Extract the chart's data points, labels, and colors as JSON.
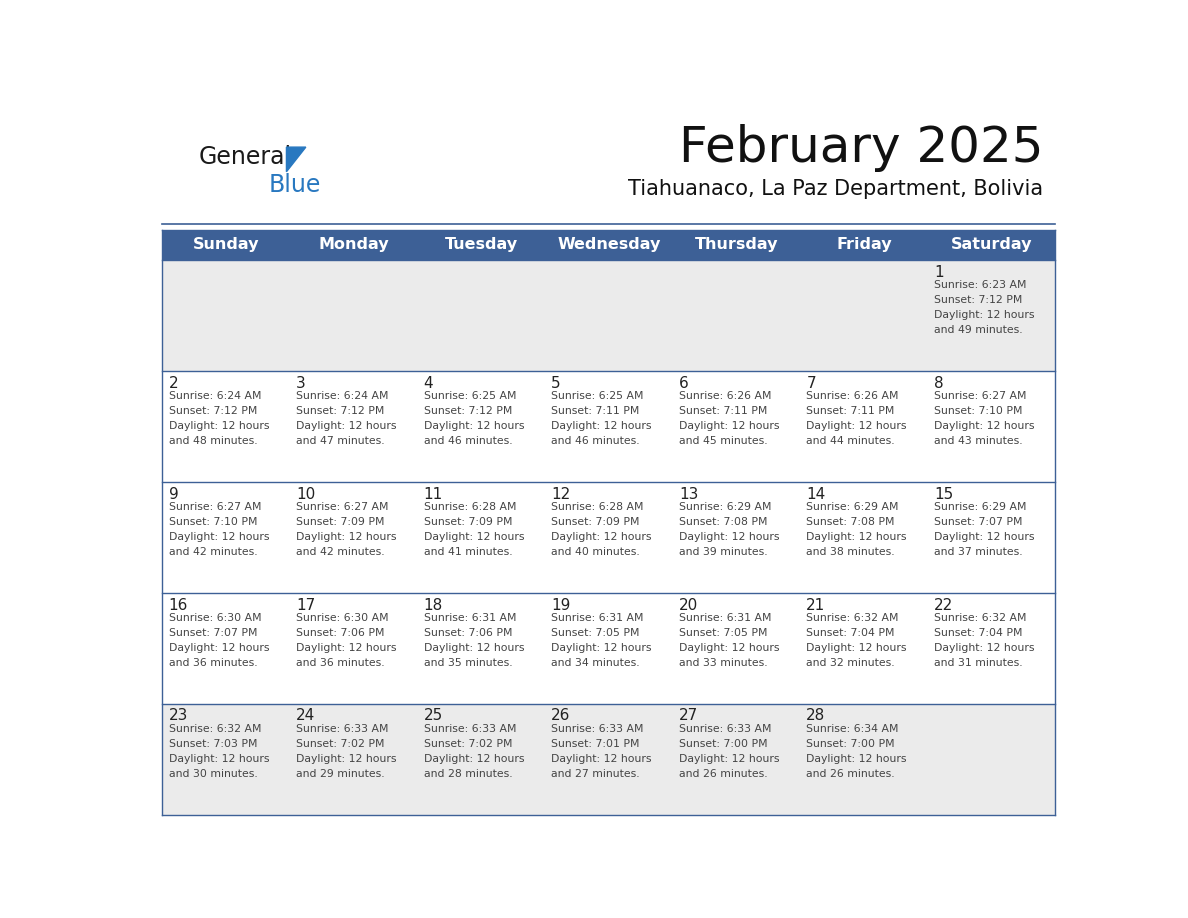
{
  "title": "February 2025",
  "subtitle": "Tiahuanaco, La Paz Department, Bolivia",
  "days_of_week": [
    "Sunday",
    "Monday",
    "Tuesday",
    "Wednesday",
    "Thursday",
    "Friday",
    "Saturday"
  ],
  "header_bg": "#3D6096",
  "header_text": "#FFFFFF",
  "cell_bg_white": "#FFFFFF",
  "cell_bg_light": "#F0F0F0",
  "row_separator_color": "#3D6096",
  "outer_border_color": "#3D6096",
  "text_color": "#444444",
  "day_num_color": "#222222",
  "logo_general_color": "#1a1a1a",
  "logo_blue_color": "#2878C0",
  "calendar": [
    [
      {
        "day": null,
        "sunrise": null,
        "sunset": null,
        "daylight": null
      },
      {
        "day": null,
        "sunrise": null,
        "sunset": null,
        "daylight": null
      },
      {
        "day": null,
        "sunrise": null,
        "sunset": null,
        "daylight": null
      },
      {
        "day": null,
        "sunrise": null,
        "sunset": null,
        "daylight": null
      },
      {
        "day": null,
        "sunrise": null,
        "sunset": null,
        "daylight": null
      },
      {
        "day": null,
        "sunrise": null,
        "sunset": null,
        "daylight": null
      },
      {
        "day": 1,
        "sunrise": "6:23 AM",
        "sunset": "7:12 PM",
        "daylight": "12 hours\nand 49 minutes."
      }
    ],
    [
      {
        "day": 2,
        "sunrise": "6:24 AM",
        "sunset": "7:12 PM",
        "daylight": "12 hours\nand 48 minutes."
      },
      {
        "day": 3,
        "sunrise": "6:24 AM",
        "sunset": "7:12 PM",
        "daylight": "12 hours\nand 47 minutes."
      },
      {
        "day": 4,
        "sunrise": "6:25 AM",
        "sunset": "7:12 PM",
        "daylight": "12 hours\nand 46 minutes."
      },
      {
        "day": 5,
        "sunrise": "6:25 AM",
        "sunset": "7:11 PM",
        "daylight": "12 hours\nand 46 minutes."
      },
      {
        "day": 6,
        "sunrise": "6:26 AM",
        "sunset": "7:11 PM",
        "daylight": "12 hours\nand 45 minutes."
      },
      {
        "day": 7,
        "sunrise": "6:26 AM",
        "sunset": "7:11 PM",
        "daylight": "12 hours\nand 44 minutes."
      },
      {
        "day": 8,
        "sunrise": "6:27 AM",
        "sunset": "7:10 PM",
        "daylight": "12 hours\nand 43 minutes."
      }
    ],
    [
      {
        "day": 9,
        "sunrise": "6:27 AM",
        "sunset": "7:10 PM",
        "daylight": "12 hours\nand 42 minutes."
      },
      {
        "day": 10,
        "sunrise": "6:27 AM",
        "sunset": "7:09 PM",
        "daylight": "12 hours\nand 42 minutes."
      },
      {
        "day": 11,
        "sunrise": "6:28 AM",
        "sunset": "7:09 PM",
        "daylight": "12 hours\nand 41 minutes."
      },
      {
        "day": 12,
        "sunrise": "6:28 AM",
        "sunset": "7:09 PM",
        "daylight": "12 hours\nand 40 minutes."
      },
      {
        "day": 13,
        "sunrise": "6:29 AM",
        "sunset": "7:08 PM",
        "daylight": "12 hours\nand 39 minutes."
      },
      {
        "day": 14,
        "sunrise": "6:29 AM",
        "sunset": "7:08 PM",
        "daylight": "12 hours\nand 38 minutes."
      },
      {
        "day": 15,
        "sunrise": "6:29 AM",
        "sunset": "7:07 PM",
        "daylight": "12 hours\nand 37 minutes."
      }
    ],
    [
      {
        "day": 16,
        "sunrise": "6:30 AM",
        "sunset": "7:07 PM",
        "daylight": "12 hours\nand 36 minutes."
      },
      {
        "day": 17,
        "sunrise": "6:30 AM",
        "sunset": "7:06 PM",
        "daylight": "12 hours\nand 36 minutes."
      },
      {
        "day": 18,
        "sunrise": "6:31 AM",
        "sunset": "7:06 PM",
        "daylight": "12 hours\nand 35 minutes."
      },
      {
        "day": 19,
        "sunrise": "6:31 AM",
        "sunset": "7:05 PM",
        "daylight": "12 hours\nand 34 minutes."
      },
      {
        "day": 20,
        "sunrise": "6:31 AM",
        "sunset": "7:05 PM",
        "daylight": "12 hours\nand 33 minutes."
      },
      {
        "day": 21,
        "sunrise": "6:32 AM",
        "sunset": "7:04 PM",
        "daylight": "12 hours\nand 32 minutes."
      },
      {
        "day": 22,
        "sunrise": "6:32 AM",
        "sunset": "7:04 PM",
        "daylight": "12 hours\nand 31 minutes."
      }
    ],
    [
      {
        "day": 23,
        "sunrise": "6:32 AM",
        "sunset": "7:03 PM",
        "daylight": "12 hours\nand 30 minutes."
      },
      {
        "day": 24,
        "sunrise": "6:33 AM",
        "sunset": "7:02 PM",
        "daylight": "12 hours\nand 29 minutes."
      },
      {
        "day": 25,
        "sunrise": "6:33 AM",
        "sunset": "7:02 PM",
        "daylight": "12 hours\nand 28 minutes."
      },
      {
        "day": 26,
        "sunrise": "6:33 AM",
        "sunset": "7:01 PM",
        "daylight": "12 hours\nand 27 minutes."
      },
      {
        "day": 27,
        "sunrise": "6:33 AM",
        "sunset": "7:00 PM",
        "daylight": "12 hours\nand 26 minutes."
      },
      {
        "day": 28,
        "sunrise": "6:34 AM",
        "sunset": "7:00 PM",
        "daylight": "12 hours\nand 26 minutes."
      },
      {
        "day": null,
        "sunrise": null,
        "sunset": null,
        "daylight": null
      }
    ]
  ],
  "row0_bg": "#EBEBEB",
  "row_bg": "#FFFFFF",
  "last_row_bg": "#EBEBEB"
}
